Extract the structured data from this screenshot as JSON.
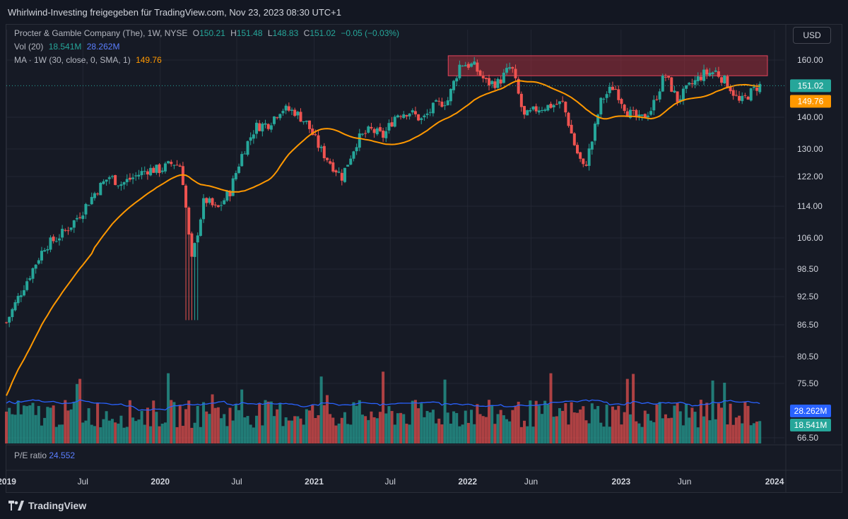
{
  "header": {
    "title": "Whirlwind-Investing freigegeben für TradingView.com, Nov 23, 2023 08:30 UTC+1"
  },
  "legend": {
    "symbol": "Procter & Gamble Company (The), 1W, NYSE",
    "o_label": "O",
    "o_value": "150.21",
    "h_label": "H",
    "h_value": "151.48",
    "l_label": "L",
    "l_value": "148.83",
    "c_label": "C",
    "c_value": "151.02",
    "change": "−0.05 (−0.03%)",
    "vol_label": "Vol (20)",
    "vol_value": "18.541M",
    "vol_ma_value": "28.262M",
    "ma_label": "MA · 1W (30, close, 0, SMA, 1)",
    "ma_value": "149.76"
  },
  "currency_button": "USD",
  "pe": {
    "label": "P/E ratio",
    "value": "24.552"
  },
  "footer": {
    "brand": "TradingView"
  },
  "colors": {
    "up": "#26a69a",
    "down": "#ef5350",
    "ma": "#ff9800",
    "vol_ma": "#2962ff",
    "zone": "#a0303c",
    "background": "#161a25",
    "grid": "#232733"
  },
  "chart_data": {
    "type": "candlestick",
    "title": "Procter & Gamble Company (The), 1W, NYSE",
    "y_ticks": [
      160.0,
      140.0,
      130.0,
      122.0,
      114.0,
      106.0,
      98.5,
      92.5,
      86.5,
      80.5,
      75.5,
      66.5
    ],
    "y_tick_labels": [
      "160.00",
      "140.00",
      "130.00",
      "122.00",
      "114.00",
      "106.00",
      "98.50",
      "92.50",
      "86.50",
      "80.50",
      "75.50",
      "66.50"
    ],
    "x_tick_labels": [
      "2019",
      "Jul",
      "2020",
      "Jul",
      "2021",
      "Jul",
      "2022",
      "Jun",
      "2023",
      "Jun",
      "2024"
    ],
    "x_tick_dates": [
      "2019-01-01",
      "2019-07-01",
      "2020-01-01",
      "2020-07-01",
      "2021-01-01",
      "2021-07-01",
      "2022-01-01",
      "2022-06-01",
      "2023-01-01",
      "2023-06-01",
      "2024-01-01"
    ],
    "last_price": {
      "label": "151.02",
      "value": 151.02
    },
    "ma_last": {
      "label": "149.76",
      "value": 149.76
    },
    "vol_ma_last": {
      "label": "28.262M"
    },
    "vol_last": {
      "label": "18.541M"
    },
    "resistance_zone": {
      "low": 154.5,
      "high": 161.5,
      "start": "2021-12-01",
      "end": "2023-11-30"
    },
    "price_path": [
      [
        "2018-12-31",
        87
      ],
      [
        "2019-02-01",
        93
      ],
      [
        "2019-03-01",
        98
      ],
      [
        "2019-04-01",
        104
      ],
      [
        "2019-05-01",
        106
      ],
      [
        "2019-06-01",
        109
      ],
      [
        "2019-07-01",
        113
      ],
      [
        "2019-08-01",
        118
      ],
      [
        "2019-09-01",
        122
      ],
      [
        "2019-10-01",
        120
      ],
      [
        "2019-11-01",
        122
      ],
      [
        "2019-12-01",
        124
      ],
      [
        "2020-01-01",
        124
      ],
      [
        "2020-02-01",
        126
      ],
      [
        "2020-02-20",
        125
      ],
      [
        "2020-03-15",
        100
      ],
      [
        "2020-03-25",
        105
      ],
      [
        "2020-04-15",
        116
      ],
      [
        "2020-05-15",
        113
      ],
      [
        "2020-06-15",
        118
      ],
      [
        "2020-07-15",
        129
      ],
      [
        "2020-08-15",
        137
      ],
      [
        "2020-09-15",
        138
      ],
      [
        "2020-10-15",
        143
      ],
      [
        "2020-11-15",
        142
      ],
      [
        "2020-12-15",
        138
      ],
      [
        "2021-01-15",
        130
      ],
      [
        "2021-02-15",
        125
      ],
      [
        "2021-03-08",
        122
      ],
      [
        "2021-04-15",
        133
      ],
      [
        "2021-05-15",
        136
      ],
      [
        "2021-06-15",
        134
      ],
      [
        "2021-07-15",
        141
      ],
      [
        "2021-08-15",
        142
      ],
      [
        "2021-09-15",
        139
      ],
      [
        "2021-10-15",
        144
      ],
      [
        "2021-11-15",
        146
      ],
      [
        "2021-12-15",
        159
      ],
      [
        "2022-01-15",
        158
      ],
      [
        "2022-02-15",
        152
      ],
      [
        "2022-03-15",
        152
      ],
      [
        "2022-04-15",
        158
      ],
      [
        "2022-05-15",
        140
      ],
      [
        "2022-06-15",
        143
      ],
      [
        "2022-07-15",
        144
      ],
      [
        "2022-08-15",
        145
      ],
      [
        "2022-09-15",
        130
      ],
      [
        "2022-10-05",
        124
      ],
      [
        "2022-10-25",
        133
      ],
      [
        "2022-11-15",
        146
      ],
      [
        "2022-12-15",
        151
      ],
      [
        "2023-01-15",
        142
      ],
      [
        "2023-02-15",
        139
      ],
      [
        "2023-03-15",
        143
      ],
      [
        "2023-04-15",
        155
      ],
      [
        "2023-05-15",
        146
      ],
      [
        "2023-06-15",
        151
      ],
      [
        "2023-07-15",
        155
      ],
      [
        "2023-08-15",
        156
      ],
      [
        "2023-09-15",
        151
      ],
      [
        "2023-10-10",
        145
      ],
      [
        "2023-11-23",
        151.02
      ]
    ]
  }
}
